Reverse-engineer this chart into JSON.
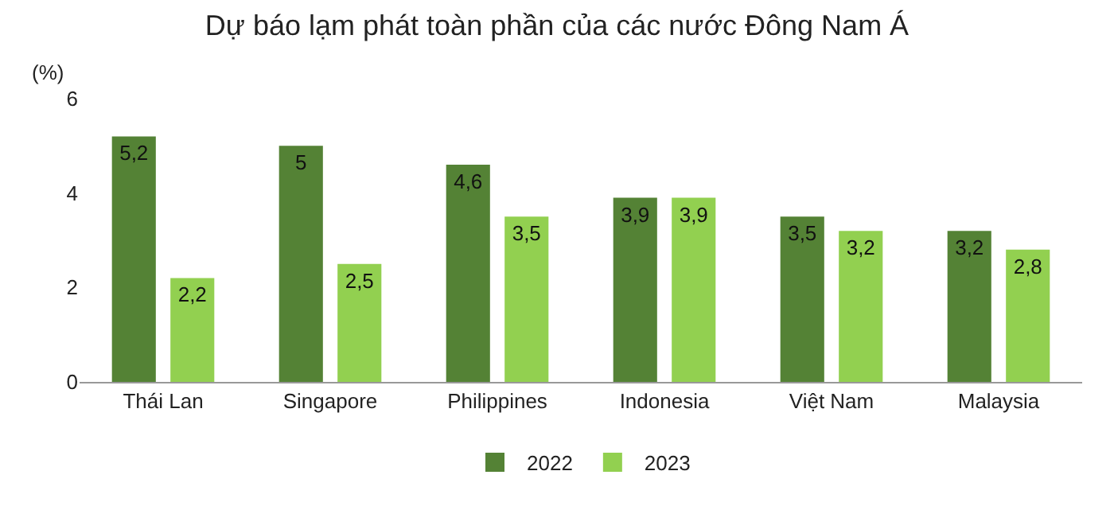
{
  "chart_data": {
    "type": "bar",
    "title": "Dự báo lạm phát toàn phần của các nước Đông Nam Á",
    "ylabel": "(%)",
    "categories": [
      "Thái Lan",
      "Singapore",
      "Philippines",
      "Indonesia",
      "Việt Nam",
      "Malaysia"
    ],
    "series": [
      {
        "name": "2022",
        "color": "#548235",
        "values": [
          5.2,
          5,
          4.6,
          3.9,
          3.5,
          3.2
        ]
      },
      {
        "name": "2023",
        "color": "#92d050",
        "values": [
          2.2,
          2.5,
          3.5,
          3.9,
          3.2,
          2.8
        ]
      }
    ],
    "value_labels": [
      [
        "5,2",
        "5",
        "4,6",
        "3,9",
        "3,5",
        "3,2"
      ],
      [
        "2,2",
        "2,5",
        "3,5",
        "3,9",
        "3,2",
        "2,8"
      ]
    ],
    "ylim": [
      0,
      6
    ],
    "yticks": [
      0,
      2,
      4,
      6
    ],
    "grid": false,
    "legend": "bottom"
  }
}
